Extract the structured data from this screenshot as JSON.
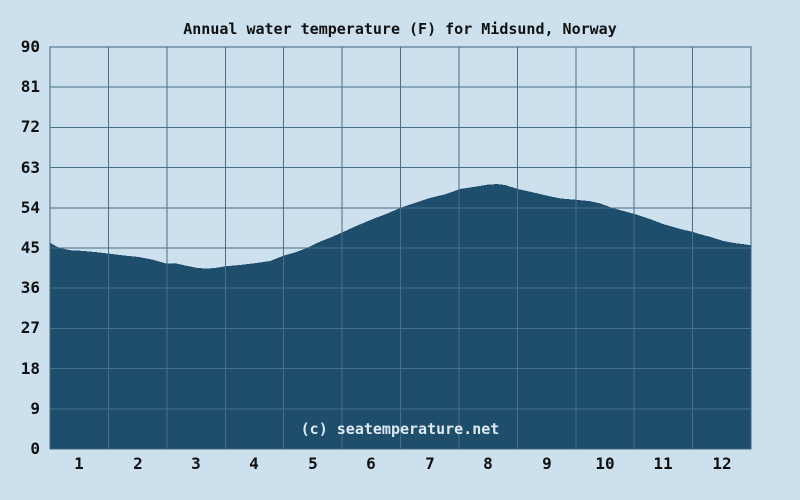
{
  "page": {
    "title": "Annual water temperature (F) for Midsund, Norway",
    "watermark": "(c) seatemperature.net",
    "background_color": "#cce0ed"
  },
  "chart_data": {
    "type": "area",
    "title": "Annual water temperature (F) for Midsund, Norway",
    "xlabel": "",
    "ylabel": "",
    "legend": "none",
    "grid": true,
    "ylim": [
      0,
      90
    ],
    "y_ticks": [
      90,
      81,
      72,
      63,
      54,
      45,
      36,
      27,
      18,
      9,
      0
    ],
    "xlim_months": [
      0,
      12
    ],
    "x_tick_labels": [
      "1",
      "2",
      "3",
      "4",
      "5",
      "6",
      "7",
      "8",
      "9",
      "10",
      "11",
      "12"
    ],
    "categories": [
      "1",
      "2",
      "3",
      "4",
      "5",
      "6",
      "7",
      "8",
      "9",
      "10",
      "11",
      "12"
    ],
    "series": [
      {
        "name": "Water temperature (F)",
        "values": [
          44.4,
          43.0,
          40.6,
          41.6,
          45.4,
          51.4,
          56.2,
          59.2,
          56.7,
          54.6,
          50.3,
          46.6
        ]
      }
    ],
    "min_f": 40.4,
    "max_f": 59.3,
    "curve_points_month_temp": [
      [
        0,
        46.2
      ],
      [
        0.09,
        45.5
      ],
      [
        0.17,
        45.0
      ],
      [
        0.34,
        44.5
      ],
      [
        0.51,
        44.4
      ],
      [
        0.77,
        44.1
      ],
      [
        1.03,
        43.7
      ],
      [
        1.28,
        43.3
      ],
      [
        1.51,
        43.0
      ],
      [
        1.75,
        42.4
      ],
      [
        2.0,
        41.5
      ],
      [
        2.14,
        41.6
      ],
      [
        2.31,
        41.1
      ],
      [
        2.5,
        40.6
      ],
      [
        2.65,
        40.4
      ],
      [
        2.82,
        40.5
      ],
      [
        3.0,
        40.9
      ],
      [
        3.25,
        41.2
      ],
      [
        3.51,
        41.6
      ],
      [
        3.77,
        42.1
      ],
      [
        4.0,
        43.3
      ],
      [
        4.19,
        44.0
      ],
      [
        4.4,
        45.0
      ],
      [
        4.62,
        46.4
      ],
      [
        4.83,
        47.5
      ],
      [
        5.02,
        48.6
      ],
      [
        5.22,
        49.8
      ],
      [
        5.51,
        51.4
      ],
      [
        5.77,
        52.7
      ],
      [
        6.0,
        54.0
      ],
      [
        6.25,
        55.1
      ],
      [
        6.5,
        56.2
      ],
      [
        6.76,
        57.0
      ],
      [
        7.02,
        58.2
      ],
      [
        7.27,
        58.7
      ],
      [
        7.5,
        59.2
      ],
      [
        7.65,
        59.3
      ],
      [
        7.79,
        59.1
      ],
      [
        8.01,
        58.2
      ],
      [
        8.22,
        57.6
      ],
      [
        8.51,
        56.7
      ],
      [
        8.73,
        56.1
      ],
      [
        9.0,
        55.8
      ],
      [
        9.24,
        55.5
      ],
      [
        9.41,
        55.0
      ],
      [
        9.62,
        54.0
      ],
      [
        9.84,
        53.2
      ],
      [
        10.01,
        52.6
      ],
      [
        10.27,
        51.5
      ],
      [
        10.51,
        50.3
      ],
      [
        10.78,
        49.3
      ],
      [
        11.0,
        48.6
      ],
      [
        11.13,
        48.1
      ],
      [
        11.3,
        47.5
      ],
      [
        11.52,
        46.6
      ],
      [
        11.72,
        46.1
      ],
      [
        11.9,
        45.8
      ],
      [
        12.0,
        45.6
      ]
    ],
    "colors": {
      "area_fill": "#1f4e6c",
      "background": "#cce0ed",
      "gridline": "#4a7088",
      "plot_border": "#41657b",
      "text": "#111111",
      "watermark_text": "#dceaf3"
    }
  }
}
